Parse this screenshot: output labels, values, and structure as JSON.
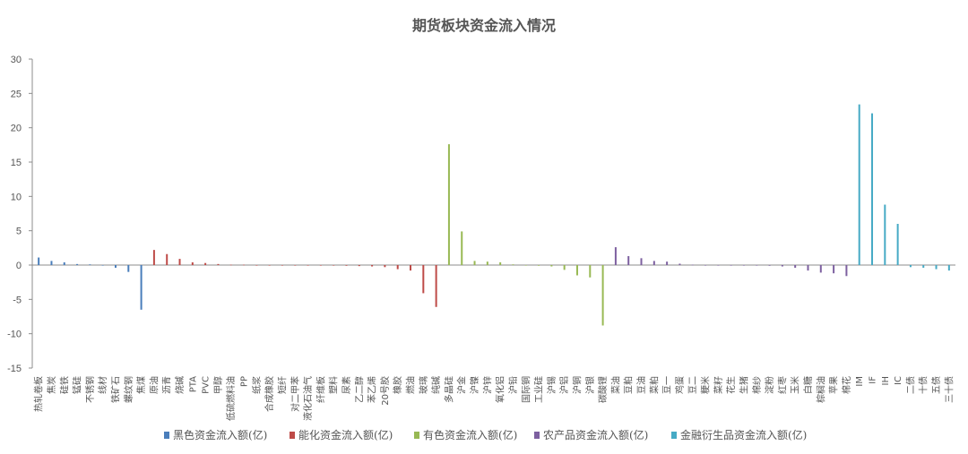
{
  "chart_data": {
    "type": "bar",
    "title": "期货板块资金流入情况",
    "ylim": [
      -15,
      30
    ],
    "yticks": [
      30,
      25,
      20,
      15,
      10,
      5,
      0,
      -5,
      -10,
      -15
    ],
    "grid": false,
    "legend_position": "bottom",
    "categories": [
      "热轧卷板",
      "焦炭",
      "硅铁",
      "锰硅",
      "不锈钢",
      "线材",
      "铁矿石",
      "螺纹钢",
      "焦煤",
      "原油",
      "沥青",
      "烧碱",
      "PTA",
      "PVC",
      "甲醇",
      "低硫燃料油",
      "PP",
      "纸浆",
      "合成橡胶",
      "短纤",
      "对二甲苯",
      "液化石油气",
      "纤维板",
      "塑料",
      "尿素",
      "乙二醇",
      "苯乙烯",
      "20号胶",
      "橡胶",
      "燃油",
      "玻璃",
      "纯碱",
      "多晶硅",
      "沪金",
      "沪镍",
      "沪锌",
      "氧化铝",
      "沪铅",
      "国际铜",
      "工业硅",
      "沪锡",
      "沪铝",
      "沪铜",
      "沪银",
      "碳酸锂",
      "菜油",
      "豆粕",
      "豆油",
      "菜粕",
      "豆一",
      "鸡蛋",
      "豆二",
      "粳米",
      "菜籽",
      "花生",
      "生猪",
      "棉纱",
      "淀粉",
      "红枣",
      "玉米",
      "白糖",
      "棕榈油",
      "苹果",
      "棉花",
      "IM",
      "IF",
      "IH",
      "IC",
      "二债",
      "十债",
      "五债",
      "三十债"
    ],
    "series": [
      {
        "name": "黑色资金流入额(亿)",
        "color": "#4a7ebb",
        "values": [
          1.1,
          0.6,
          0.4,
          0.15,
          0.1,
          0.0,
          -0.4,
          -1.0,
          -6.5,
          null,
          null,
          null,
          null,
          null,
          null,
          null,
          null,
          null,
          null,
          null,
          null,
          null,
          null,
          null,
          null,
          null,
          null,
          null,
          null,
          null,
          null,
          null,
          null,
          null,
          null,
          null,
          null,
          null,
          null,
          null,
          null,
          null,
          null,
          null,
          null,
          null,
          null,
          null,
          null,
          null,
          null,
          null,
          null,
          null,
          null,
          null,
          null,
          null,
          null,
          null,
          null,
          null,
          null,
          null,
          null,
          null,
          null,
          null,
          null,
          null,
          null,
          null
        ]
      },
      {
        "name": "能化资金流入额(亿)",
        "color": "#be4b48",
        "values": [
          null,
          null,
          null,
          null,
          null,
          null,
          null,
          null,
          null,
          2.2,
          1.6,
          0.9,
          0.4,
          0.3,
          0.15,
          0.05,
          0.05,
          0.0,
          0.0,
          0.0,
          0.0,
          0.0,
          0.0,
          -0.05,
          -0.1,
          -0.15,
          -0.2,
          -0.3,
          -0.6,
          -0.8,
          -4.1,
          -6.1,
          null,
          null,
          null,
          null,
          null,
          null,
          null,
          null,
          null,
          null,
          null,
          null,
          null,
          null,
          null,
          null,
          null,
          null,
          null,
          null,
          null,
          null,
          null,
          null,
          null,
          null,
          null,
          null,
          null,
          null,
          null,
          null,
          null,
          null,
          null,
          null,
          null,
          null,
          null,
          null
        ]
      },
      {
        "name": "有色资金流入额(亿)",
        "color": "#98b954",
        "values": [
          null,
          null,
          null,
          null,
          null,
          null,
          null,
          null,
          null,
          null,
          null,
          null,
          null,
          null,
          null,
          null,
          null,
          null,
          null,
          null,
          null,
          null,
          null,
          null,
          null,
          null,
          null,
          null,
          null,
          null,
          null,
          null,
          17.6,
          4.9,
          0.6,
          0.5,
          0.4,
          0.1,
          0.0,
          -0.1,
          -0.2,
          -0.7,
          -1.5,
          -1.8,
          -8.8,
          null,
          null,
          null,
          null,
          null,
          null,
          null,
          null,
          null,
          null,
          null,
          null,
          null,
          null,
          null,
          null,
          null,
          null,
          null,
          null,
          null,
          null,
          null,
          null,
          null,
          null,
          null
        ]
      },
      {
        "name": "农产品资金流入额(亿)",
        "color": "#7d60a0",
        "values": [
          null,
          null,
          null,
          null,
          null,
          null,
          null,
          null,
          null,
          null,
          null,
          null,
          null,
          null,
          null,
          null,
          null,
          null,
          null,
          null,
          null,
          null,
          null,
          null,
          null,
          null,
          null,
          null,
          null,
          null,
          null,
          null,
          null,
          null,
          null,
          null,
          null,
          null,
          null,
          null,
          null,
          null,
          null,
          null,
          null,
          2.6,
          1.3,
          1.0,
          0.6,
          0.5,
          0.2,
          0.05,
          0.0,
          0.0,
          0.0,
          0.0,
          -0.05,
          -0.1,
          -0.2,
          -0.4,
          -0.8,
          -1.1,
          -1.2,
          -1.6,
          null,
          null,
          null,
          null,
          null,
          null,
          null,
          null
        ]
      },
      {
        "name": "金融衍生品资金流入额(亿)",
        "color": "#46aac5",
        "values": [
          null,
          null,
          null,
          null,
          null,
          null,
          null,
          null,
          null,
          null,
          null,
          null,
          null,
          null,
          null,
          null,
          null,
          null,
          null,
          null,
          null,
          null,
          null,
          null,
          null,
          null,
          null,
          null,
          null,
          null,
          null,
          null,
          null,
          null,
          null,
          null,
          null,
          null,
          null,
          null,
          null,
          null,
          null,
          null,
          null,
          null,
          null,
          null,
          null,
          null,
          null,
          null,
          null,
          null,
          null,
          null,
          null,
          null,
          null,
          null,
          null,
          null,
          null,
          null,
          23.4,
          22.1,
          8.8,
          6.0,
          -0.3,
          -0.4,
          -0.6,
          -0.8
        ]
      }
    ]
  }
}
